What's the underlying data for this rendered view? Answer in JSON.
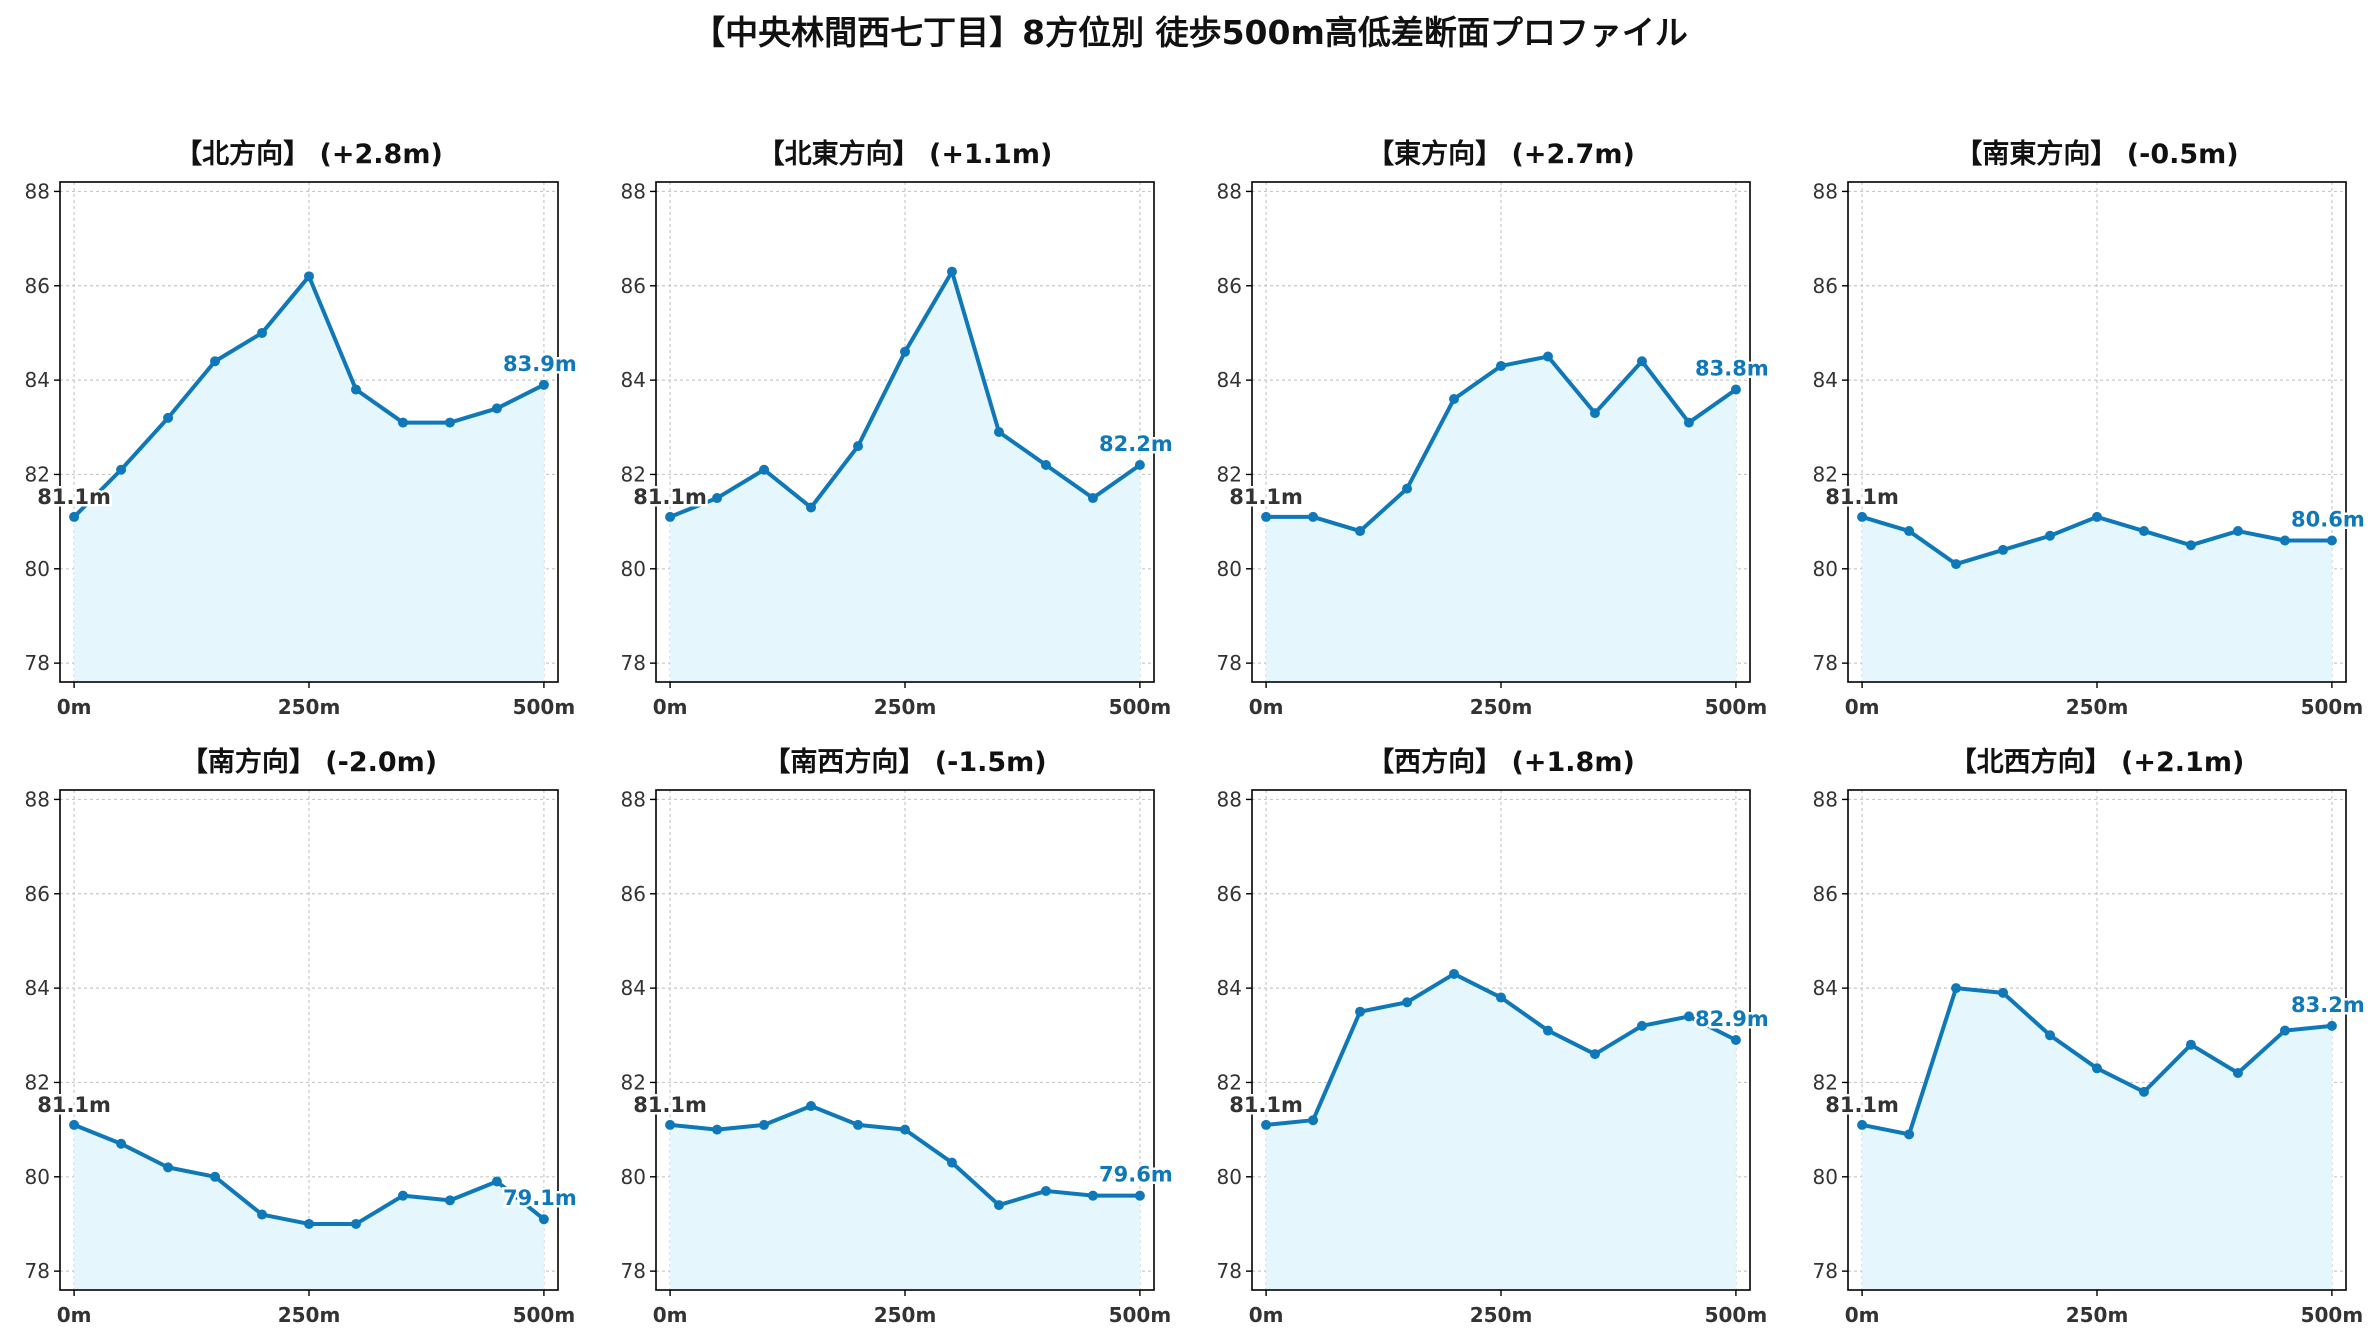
{
  "figure_title": "【中央林間西七丁目】8方位別 徒歩500m高低差断面プロファイル",
  "colors": {
    "line": "#0f78b8",
    "fill": "#e6f6fd",
    "grid": "#c8c8c8",
    "axis": "#000000",
    "start_label": "#333333",
    "end_label": "#0f78b8"
  },
  "chart_data": [
    {
      "type": "area",
      "title": "【北方向】 (+2.8m)",
      "x": [
        0,
        50,
        100,
        150,
        200,
        250,
        300,
        350,
        400,
        450,
        500
      ],
      "series": [
        {
          "values": [
            81.1,
            82.1,
            83.2,
            84.4,
            85.0,
            86.2,
            83.8,
            83.1,
            83.1,
            83.4,
            83.9
          ]
        }
      ],
      "start_label": "81.1m",
      "end_label": "83.9m",
      "xticks": [
        0,
        250,
        500
      ],
      "xtick_labels": [
        "0m",
        "250m",
        "500m"
      ],
      "yticks": [
        78,
        80,
        82,
        84,
        86,
        88
      ],
      "ytick_labels": [
        "78",
        "80",
        "82",
        "84",
        "86",
        "88"
      ],
      "xlim": [
        -15,
        515
      ],
      "ylim": [
        77.6,
        88.2
      ],
      "grid": true
    },
    {
      "type": "area",
      "title": "【北東方向】 (+1.1m)",
      "x": [
        0,
        50,
        100,
        150,
        200,
        250,
        300,
        350,
        400,
        450,
        500
      ],
      "series": [
        {
          "values": [
            81.1,
            81.5,
            82.1,
            81.3,
            82.6,
            84.6,
            86.3,
            82.9,
            82.2,
            81.5,
            82.2
          ]
        }
      ],
      "start_label": "81.1m",
      "end_label": "82.2m",
      "xticks": [
        0,
        250,
        500
      ],
      "xtick_labels": [
        "0m",
        "250m",
        "500m"
      ],
      "yticks": [
        78,
        80,
        82,
        84,
        86,
        88
      ],
      "ytick_labels": [
        "78",
        "80",
        "82",
        "84",
        "86",
        "88"
      ],
      "xlim": [
        -15,
        515
      ],
      "ylim": [
        77.6,
        88.2
      ],
      "grid": true
    },
    {
      "type": "area",
      "title": "【東方向】 (+2.7m)",
      "x": [
        0,
        50,
        100,
        150,
        200,
        250,
        300,
        350,
        400,
        450,
        500
      ],
      "series": [
        {
          "values": [
            81.1,
            81.1,
            80.8,
            81.7,
            83.6,
            84.3,
            84.5,
            83.3,
            84.4,
            83.1,
            83.8
          ]
        }
      ],
      "start_label": "81.1m",
      "end_label": "83.8m",
      "xticks": [
        0,
        250,
        500
      ],
      "xtick_labels": [
        "0m",
        "250m",
        "500m"
      ],
      "yticks": [
        78,
        80,
        82,
        84,
        86,
        88
      ],
      "ytick_labels": [
        "78",
        "80",
        "82",
        "84",
        "86",
        "88"
      ],
      "xlim": [
        -15,
        515
      ],
      "ylim": [
        77.6,
        88.2
      ],
      "grid": true
    },
    {
      "type": "area",
      "title": "【南東方向】 (-0.5m)",
      "x": [
        0,
        50,
        100,
        150,
        200,
        250,
        300,
        350,
        400,
        450,
        500
      ],
      "series": [
        {
          "values": [
            81.1,
            80.8,
            80.1,
            80.4,
            80.7,
            81.1,
            80.8,
            80.5,
            80.8,
            80.6,
            80.6
          ]
        }
      ],
      "start_label": "81.1m",
      "end_label": "80.6m",
      "xticks": [
        0,
        250,
        500
      ],
      "xtick_labels": [
        "0m",
        "250m",
        "500m"
      ],
      "yticks": [
        78,
        80,
        82,
        84,
        86,
        88
      ],
      "ytick_labels": [
        "78",
        "80",
        "82",
        "84",
        "86",
        "88"
      ],
      "xlim": [
        -15,
        515
      ],
      "ylim": [
        77.6,
        88.2
      ],
      "grid": true
    },
    {
      "type": "area",
      "title": "【南方向】 (-2.0m)",
      "x": [
        0,
        50,
        100,
        150,
        200,
        250,
        300,
        350,
        400,
        450,
        500
      ],
      "series": [
        {
          "values": [
            81.1,
            80.7,
            80.2,
            80.0,
            79.2,
            79.0,
            79.0,
            79.6,
            79.5,
            79.9,
            79.1
          ]
        }
      ],
      "start_label": "81.1m",
      "end_label": "79.1m",
      "xticks": [
        0,
        250,
        500
      ],
      "xtick_labels": [
        "0m",
        "250m",
        "500m"
      ],
      "yticks": [
        78,
        80,
        82,
        84,
        86,
        88
      ],
      "ytick_labels": [
        "78",
        "80",
        "82",
        "84",
        "86",
        "88"
      ],
      "xlim": [
        -15,
        515
      ],
      "ylim": [
        77.6,
        88.2
      ],
      "grid": true
    },
    {
      "type": "area",
      "title": "【南西方向】 (-1.5m)",
      "x": [
        0,
        50,
        100,
        150,
        200,
        250,
        300,
        350,
        400,
        450,
        500
      ],
      "series": [
        {
          "values": [
            81.1,
            81.0,
            81.1,
            81.5,
            81.1,
            81.0,
            80.3,
            79.4,
            79.7,
            79.6,
            79.6
          ]
        }
      ],
      "start_label": "81.1m",
      "end_label": "79.6m",
      "xticks": [
        0,
        250,
        500
      ],
      "xtick_labels": [
        "0m",
        "250m",
        "500m"
      ],
      "yticks": [
        78,
        80,
        82,
        84,
        86,
        88
      ],
      "ytick_labels": [
        "78",
        "80",
        "82",
        "84",
        "86",
        "88"
      ],
      "xlim": [
        -15,
        515
      ],
      "ylim": [
        77.6,
        88.2
      ],
      "grid": true
    },
    {
      "type": "area",
      "title": "【西方向】 (+1.8m)",
      "x": [
        0,
        50,
        100,
        150,
        200,
        250,
        300,
        350,
        400,
        450,
        500
      ],
      "series": [
        {
          "values": [
            81.1,
            81.2,
            83.5,
            83.7,
            84.3,
            83.8,
            83.1,
            82.6,
            83.2,
            83.4,
            82.9
          ]
        }
      ],
      "start_label": "81.1m",
      "end_label": "82.9m",
      "xticks": [
        0,
        250,
        500
      ],
      "xtick_labels": [
        "0m",
        "250m",
        "500m"
      ],
      "yticks": [
        78,
        80,
        82,
        84,
        86,
        88
      ],
      "ytick_labels": [
        "78",
        "80",
        "82",
        "84",
        "86",
        "88"
      ],
      "xlim": [
        -15,
        515
      ],
      "ylim": [
        77.6,
        88.2
      ],
      "grid": true
    },
    {
      "type": "area",
      "title": "【北西方向】 (+2.1m)",
      "x": [
        0,
        50,
        100,
        150,
        200,
        250,
        300,
        350,
        400,
        450,
        500
      ],
      "series": [
        {
          "values": [
            81.1,
            80.9,
            84.0,
            83.9,
            83.0,
            82.3,
            81.8,
            82.8,
            82.2,
            83.1,
            83.2
          ]
        }
      ],
      "start_label": "81.1m",
      "end_label": "83.2m",
      "xticks": [
        0,
        250,
        500
      ],
      "xtick_labels": [
        "0m",
        "250m",
        "500m"
      ],
      "yticks": [
        78,
        80,
        82,
        84,
        86,
        88
      ],
      "ytick_labels": [
        "78",
        "80",
        "82",
        "84",
        "86",
        "88"
      ],
      "xlim": [
        -15,
        515
      ],
      "ylim": [
        77.6,
        88.2
      ],
      "grid": true
    }
  ]
}
